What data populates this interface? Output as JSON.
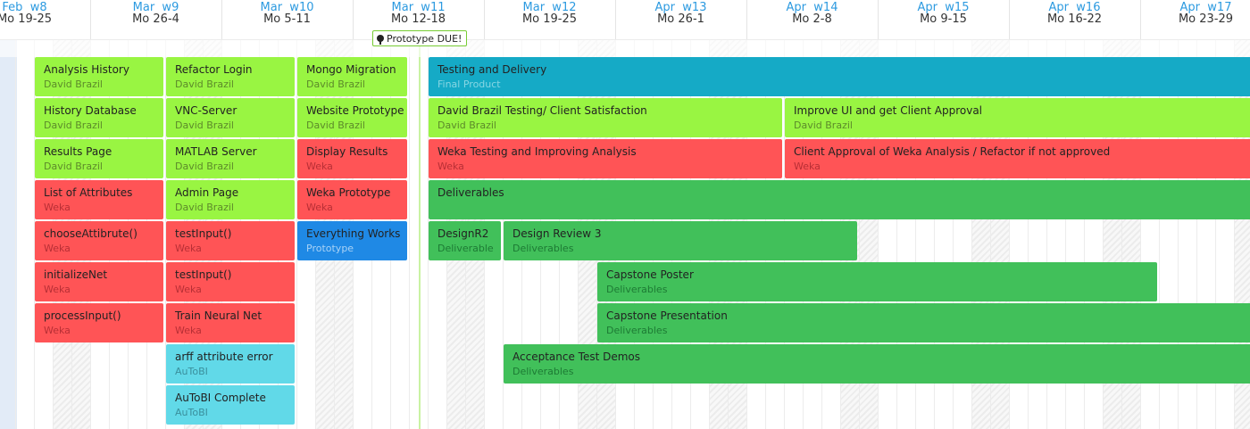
{
  "colors": {
    "green": "#99f542",
    "red": "#ff5456",
    "teal": "#15aac6",
    "dark_green": "#41c05a",
    "blue": "#1f89e5",
    "cyan": "#61d9e8",
    "week_label": "#2c9ae0"
  },
  "weeks": [
    {
      "label": "Feb  w8",
      "range": "Mo 19-25"
    },
    {
      "label": "Mar  w9",
      "range": "Mo 26-4"
    },
    {
      "label": "Mar  w10",
      "range": "Mo 5-11"
    },
    {
      "label": "Mar  w11",
      "range": "Mo 12-18"
    },
    {
      "label": "Mar  w12",
      "range": "Mo 19-25"
    },
    {
      "label": "Apr  w13",
      "range": "Mo 26-1"
    },
    {
      "label": "Apr  w14",
      "range": "Mo 2-8"
    },
    {
      "label": "Apr  w15",
      "range": "Mo 9-15"
    },
    {
      "label": "Apr  w16",
      "range": "Mo 16-22"
    },
    {
      "label": "Apr  w17",
      "range": "Mo 23-29"
    }
  ],
  "milestone": {
    "label": "Prototype DUE!",
    "icon": "pin-icon"
  },
  "tasks": [
    {
      "title": "Analysis History",
      "sub": "David Brazil",
      "color": "green"
    },
    {
      "title": "History Database",
      "sub": "David Brazil",
      "color": "green"
    },
    {
      "title": "Results Page",
      "sub": "David Brazil",
      "color": "green"
    },
    {
      "title": "List of Attributes",
      "sub": "Weka",
      "color": "red"
    },
    {
      "title": "chooseAttibrute()",
      "sub": "Weka",
      "color": "red"
    },
    {
      "title": "initializeNet",
      "sub": "Weka",
      "color": "red"
    },
    {
      "title": "processInput()",
      "sub": "Weka",
      "color": "red"
    },
    {
      "title": "Refactor Login",
      "sub": "David Brazil",
      "color": "green"
    },
    {
      "title": "VNC-Server",
      "sub": "David Brazil",
      "color": "green"
    },
    {
      "title": "MATLAB Server",
      "sub": "David Brazil",
      "color": "green"
    },
    {
      "title": "Admin Page",
      "sub": "David Brazil",
      "color": "green"
    },
    {
      "title": "testInput()",
      "sub": "Weka",
      "color": "red"
    },
    {
      "title": "testInput()",
      "sub": "Weka",
      "color": "red"
    },
    {
      "title": "Train Neural Net",
      "sub": "Weka",
      "color": "red"
    },
    {
      "title": "arff attribute error",
      "sub": "AuToBI",
      "color": "cyan"
    },
    {
      "title": "AuToBI Complete",
      "sub": "AuToBI",
      "color": "cyan"
    },
    {
      "title": "Mongo Migration",
      "sub": "David Brazil",
      "color": "green"
    },
    {
      "title": "Website Prototype",
      "sub": "David Brazil",
      "color": "green"
    },
    {
      "title": "Display Results",
      "sub": "Weka",
      "color": "red"
    },
    {
      "title": "Weka Prototype",
      "sub": "Weka",
      "color": "red"
    },
    {
      "title": "Everything Works",
      "sub": "Prototype",
      "color": "blue"
    },
    {
      "title": "Testing and Delivery",
      "sub": "Final Product",
      "color": "teal"
    },
    {
      "title": "David Brazil Testing/ Client Satisfaction",
      "sub": "David Brazil",
      "color": "green"
    },
    {
      "title": "Improve UI and get Client Approval",
      "sub": "David Brazil",
      "color": "green"
    },
    {
      "title": "Weka Testing and Improving Analysis",
      "sub": "Weka",
      "color": "red"
    },
    {
      "title": "Client Approval of Weka Analysis / Refactor if not approved",
      "sub": "Weka",
      "color": "red"
    },
    {
      "title": "Deliverables",
      "sub": "",
      "color": "dark_green"
    },
    {
      "title": "DesignR2",
      "sub": "Deliverable",
      "color": "dark_green"
    },
    {
      "title": "Design Review 3",
      "sub": "Deliverables",
      "color": "dark_green"
    },
    {
      "title": "Capstone Poster",
      "sub": "Deliverables",
      "color": "dark_green"
    },
    {
      "title": "Capstone Presentation",
      "sub": "Deliverables",
      "color": "dark_green"
    },
    {
      "title": "Acceptance Test Demos",
      "sub": "Deliverables",
      "color": "dark_green"
    }
  ]
}
